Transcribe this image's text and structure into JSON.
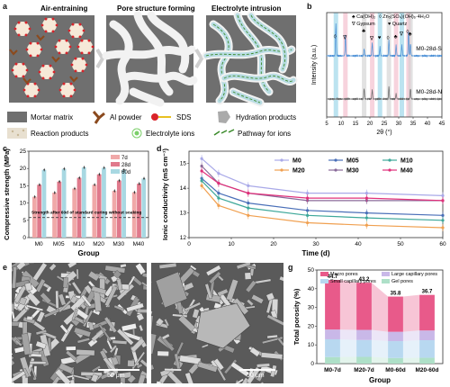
{
  "panels": {
    "a": {
      "letter": "a",
      "steps": [
        "Air-entraining",
        "Pore structure forming",
        "Electrolyte intrusion"
      ],
      "legend": [
        {
          "label": "Mortar matrix",
          "icon": "mortar-matrix-swatch"
        },
        {
          "label": "Al powder",
          "icon": "al-powder-icon"
        },
        {
          "label": "SDS",
          "icon": "sds-icon"
        },
        {
          "label": "Hydration products",
          "icon": "hydration-products-icon"
        },
        {
          "label": "Reaction products",
          "icon": "reaction-products-swatch"
        },
        {
          "label": "Electrolyte ions",
          "icon": "electrolyte-ion-icon"
        },
        {
          "label": "Pathway for ions",
          "icon": "ion-pathway-icon"
        }
      ],
      "colors": {
        "matrix": "#6f6f6f",
        "pore": "#f2f2f2",
        "sds": "#d9232a",
        "al": "#8b4a1e",
        "ion": "#7ccf6a",
        "pathway_fill": "#b9dce3"
      }
    },
    "b": {
      "letter": "b"
    },
    "c": {
      "letter": "c"
    },
    "d": {
      "letter": "d"
    },
    "e": {
      "letter": "e",
      "scale": "50 μm"
    },
    "f": {
      "letter": "f",
      "scale": "50 μm"
    },
    "g": {
      "letter": "g"
    }
  },
  "chart_data": [
    {
      "panel": "b",
      "type": "line",
      "xlabel": "2θ (°)",
      "ylabel": "Intensity (a.u.)",
      "xlim": [
        5,
        45
      ],
      "xticks": [
        5,
        10,
        15,
        20,
        25,
        30,
        35,
        40,
        45
      ],
      "legend_items": [
        {
          "symbol": "♣",
          "label": "Ca(OH)₂"
        },
        {
          "symbol": "◊",
          "label": "Zn₅(SO₄)(OH)₆·4H₂O"
        },
        {
          "symbol": "∇",
          "label": "Gypsum"
        },
        {
          "symbol": "♥",
          "label": "Quartz"
        }
      ],
      "series": [
        {
          "name": "M0-28d-S",
          "color": "#4a8fd6",
          "offset": 0.55,
          "peaks": [
            [
              8.2,
              0.9
            ],
            [
              11.5,
              0.6
            ],
            [
              18.0,
              0.2
            ],
            [
              20.8,
              0.35
            ],
            [
              23.5,
              0.25
            ],
            [
              26.6,
              0.45
            ],
            [
              29.1,
              0.3
            ],
            [
              31.1,
              0.3
            ],
            [
              33.4,
              0.7
            ],
            [
              34.1,
              0.35
            ]
          ]
        },
        {
          "name": "M0-28d-N",
          "color": "#666666",
          "offset": 0.0,
          "peaks": [
            [
              18.0,
              0.3
            ],
            [
              20.8,
              0.25
            ],
            [
              26.6,
              0.35
            ],
            [
              29.1,
              0.15
            ],
            [
              34.1,
              0.3
            ]
          ]
        }
      ],
      "peak_markers": [
        {
          "x": 8.2,
          "symbol": "◊"
        },
        {
          "x": 11.5,
          "symbol": "∇"
        },
        {
          "x": 18.0,
          "symbol": "♣"
        },
        {
          "x": 20.8,
          "symbol": "∇"
        },
        {
          "x": 23.5,
          "symbol": "♥"
        },
        {
          "x": 26.6,
          "symbol": "◊"
        },
        {
          "x": 29.1,
          "symbol": "♣"
        },
        {
          "x": 31.1,
          "symbol": "∇"
        },
        {
          "x": 33.4,
          "symbol": "◊"
        },
        {
          "x": 34.1,
          "symbol": "♣"
        }
      ],
      "bands": [
        {
          "x": 8.2,
          "color": "#8fd1e6"
        },
        {
          "x": 11.5,
          "color": "#f2b6c6"
        },
        {
          "x": 18.0,
          "color": "#cfcfcf"
        },
        {
          "x": 20.8,
          "color": "#f2b6c6"
        },
        {
          "x": 23.5,
          "color": "#8fd1e6"
        },
        {
          "x": 26.6,
          "color": "#cfcfcf"
        },
        {
          "x": 29.1,
          "color": "#f2b6c6"
        },
        {
          "x": 31.1,
          "color": "#8fd1e6"
        },
        {
          "x": 33.4,
          "color": "#f2b6c6"
        },
        {
          "x": 34.1,
          "color": "#cfcfcf"
        }
      ]
    },
    {
      "panel": "c",
      "type": "bar",
      "xlabel": "Group",
      "ylabel": "Compressive strength (MPa)",
      "ylim": [
        0,
        25
      ],
      "yticks": [
        0,
        5,
        10,
        15,
        20,
        25
      ],
      "categories": [
        "M0",
        "M05",
        "M10",
        "M20",
        "M30",
        "M40"
      ],
      "series": [
        {
          "name": "7d",
          "color": "#f0a8a8",
          "values": [
            11.8,
            13.0,
            14.2,
            15.3,
            13.5,
            13.1
          ]
        },
        {
          "name": "28d",
          "color": "#e07a8c",
          "values": [
            15.3,
            16.2,
            17.3,
            18.3,
            16.5,
            15.6
          ]
        },
        {
          "name": "60d",
          "color": "#a8d8e2",
          "values": [
            19.6,
            19.9,
            20.3,
            20.2,
            19.6,
            17.1
          ]
        }
      ],
      "reference_line": {
        "value": 5.8,
        "label": "Strength after 60d of standard curing without soaking"
      }
    },
    {
      "panel": "d",
      "type": "line",
      "xlabel": "Time (d)",
      "ylabel": "Ionic conductivity (mS cm⁻¹)",
      "xlim": [
        0,
        60
      ],
      "ylim": [
        12,
        15.5
      ],
      "xticks": [
        0,
        10,
        20,
        30,
        40,
        50,
        60
      ],
      "yticks": [
        12,
        13,
        14,
        15
      ],
      "x": [
        3,
        7,
        14,
        28,
        42,
        60
      ],
      "series": [
        {
          "name": "M0",
          "color": "#a9a9e8",
          "values": [
            15.2,
            14.6,
            14.1,
            13.8,
            13.8,
            13.7
          ]
        },
        {
          "name": "M05",
          "color": "#4a6fb8",
          "values": [
            14.4,
            13.8,
            13.4,
            13.1,
            13.0,
            12.9
          ]
        },
        {
          "name": "M10",
          "color": "#3ea89a",
          "values": [
            14.3,
            13.6,
            13.2,
            12.9,
            12.8,
            12.7
          ]
        },
        {
          "name": "M20",
          "color": "#f0a050",
          "values": [
            14.1,
            13.3,
            12.9,
            12.6,
            12.5,
            12.4
          ]
        },
        {
          "name": "M30",
          "color": "#8a6a9a",
          "values": [
            14.9,
            14.2,
            13.8,
            13.5,
            13.5,
            13.5
          ]
        },
        {
          "name": "M40",
          "color": "#e0307a",
          "values": [
            14.7,
            14.2,
            13.8,
            13.6,
            13.6,
            13.5
          ]
        }
      ]
    },
    {
      "panel": "g",
      "type": "bar",
      "stacked": true,
      "xlabel": "Group",
      "ylabel": "Total porosity (%)",
      "ylim": [
        0,
        50
      ],
      "yticks": [
        0,
        10,
        20,
        30,
        40,
        50
      ],
      "categories": [
        "M0-7d",
        "M20-7d",
        "M0-60d",
        "M20-60d"
      ],
      "totals": [
        44.7,
        43.2,
        35.8,
        36.7
      ],
      "series": [
        {
          "name": "Gel pores",
          "color": "#aee0c8",
          "values": [
            3.5,
            3.6,
            3.0,
            3.1
          ]
        },
        {
          "name": "Small capillary pores",
          "color": "#b8d8f0",
          "values": [
            9.5,
            9.0,
            9.0,
            9.4
          ]
        },
        {
          "name": "Large capillary pores",
          "color": "#c9b8e8",
          "values": [
            5.2,
            5.4,
            5.0,
            5.2
          ]
        },
        {
          "name": "Macro pores",
          "color": "#e85a8a",
          "values": [
            26.5,
            25.2,
            18.8,
            19.0
          ]
        }
      ]
    }
  ]
}
